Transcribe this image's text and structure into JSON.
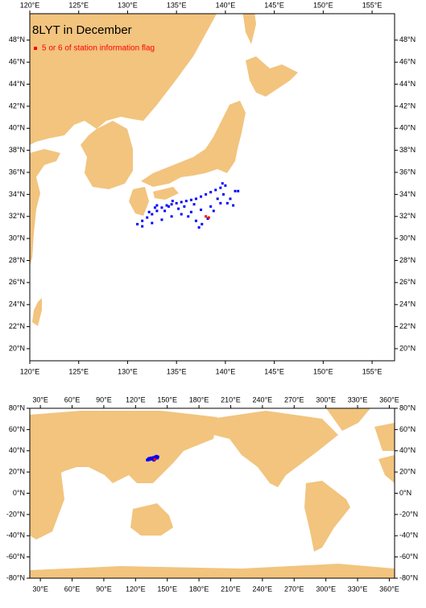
{
  "chart_data": [
    {
      "type": "map",
      "title": "8LYT in December",
      "xlim": [
        120,
        157.3
      ],
      "ylim": [
        18.9,
        50.4
      ],
      "xticks": [
        {
          "value": 120,
          "label": "120°E"
        },
        {
          "value": 125,
          "label": "125°E"
        },
        {
          "value": 130,
          "label": "130°E"
        },
        {
          "value": 135,
          "label": "135°E"
        },
        {
          "value": 140,
          "label": "140°E"
        },
        {
          "value": 145,
          "label": "145°E"
        },
        {
          "value": 150,
          "label": "150°E"
        },
        {
          "value": 155,
          "label": "155°E"
        }
      ],
      "yticks": [
        {
          "value": 20,
          "label": "20°N"
        },
        {
          "value": 22,
          "label": "22°N"
        },
        {
          "value": 24,
          "label": "24°N"
        },
        {
          "value": 26,
          "label": "26°N"
        },
        {
          "value": 28,
          "label": "28°N"
        },
        {
          "value": 30,
          "label": "30°N"
        },
        {
          "value": 32,
          "label": "32°N"
        },
        {
          "value": 34,
          "label": "34°N"
        },
        {
          "value": 36,
          "label": "36°N"
        },
        {
          "value": 38,
          "label": "38°N"
        },
        {
          "value": 40,
          "label": "40°N"
        },
        {
          "value": 42,
          "label": "42°N"
        },
        {
          "value": 44,
          "label": "44°N"
        },
        {
          "value": 46,
          "label": "46°N"
        },
        {
          "value": 48,
          "label": "48°N"
        }
      ],
      "series": [
        {
          "color": "#0000ff",
          "x": [
            131.0,
            131.5,
            132.0,
            132.5,
            133.0,
            133.5,
            134.0,
            134.5,
            135.0,
            135.5,
            136.0,
            136.5,
            137.0,
            137.5,
            138.0,
            138.5,
            139.0,
            139.5,
            140.0,
            131.5,
            132.5,
            133.5,
            134.5,
            135.5,
            136.5,
            137.5,
            138.5,
            139.5,
            140.5,
            141.0,
            133.0,
            133.8,
            134.2,
            135.2,
            135.8,
            136.2,
            137.0,
            137.3,
            137.6,
            138.2,
            138.8,
            139.2,
            139.7,
            139.8,
            140.2,
            140.8,
            141.3,
            134.6,
            136.8,
            132.8,
            132.2
          ],
          "y": [
            31.3,
            31.6,
            31.9,
            32.2,
            32.5,
            32.8,
            33.0,
            33.1,
            33.2,
            33.3,
            33.4,
            33.5,
            33.6,
            33.8,
            34.0,
            34.2,
            34.4,
            34.6,
            34.8,
            31.1,
            31.4,
            31.7,
            32.0,
            32.2,
            32.4,
            32.6,
            32.9,
            33.2,
            33.6,
            34.3,
            33.0,
            32.5,
            32.9,
            32.7,
            32.9,
            32.0,
            31.6,
            31.0,
            31.3,
            31.8,
            32.5,
            33.6,
            35.0,
            34.0,
            33.2,
            33.0,
            34.3,
            33.4,
            33.1,
            32.8,
            32.4
          ]
        },
        {
          "name": "5 or 6 of station information flag",
          "color": "#ff0000",
          "x": [
            138.0,
            138.3
          ],
          "y": [
            32.0,
            31.9
          ]
        }
      ]
    },
    {
      "type": "map",
      "xlim": [
        20,
        365
      ],
      "ylim": [
        -80,
        80
      ],
      "xticks": [
        {
          "value": 30,
          "label": "30°E"
        },
        {
          "value": 60,
          "label": "60°E"
        },
        {
          "value": 90,
          "label": "90°E"
        },
        {
          "value": 120,
          "label": "120°E"
        },
        {
          "value": 150,
          "label": "150°E"
        },
        {
          "value": 180,
          "label": "180°E"
        },
        {
          "value": 210,
          "label": "210°E"
        },
        {
          "value": 240,
          "label": "240°E"
        },
        {
          "value": 270,
          "label": "270°E"
        },
        {
          "value": 300,
          "label": "300°E"
        },
        {
          "value": 330,
          "label": "330°E"
        },
        {
          "value": 360,
          "label": "360°E"
        }
      ],
      "yticks": [
        {
          "value": -80,
          "label": "-80°N"
        },
        {
          "value": -60,
          "label": "-60°N"
        },
        {
          "value": -40,
          "label": "-40°N"
        },
        {
          "value": -20,
          "label": "-20°N"
        },
        {
          "value": 0,
          "label": "0°N"
        },
        {
          "value": 20,
          "label": "20°N"
        },
        {
          "value": 40,
          "label": "40°N"
        },
        {
          "value": 60,
          "label": "60°N"
        },
        {
          "value": 80,
          "label": "80°N"
        }
      ]
    }
  ]
}
